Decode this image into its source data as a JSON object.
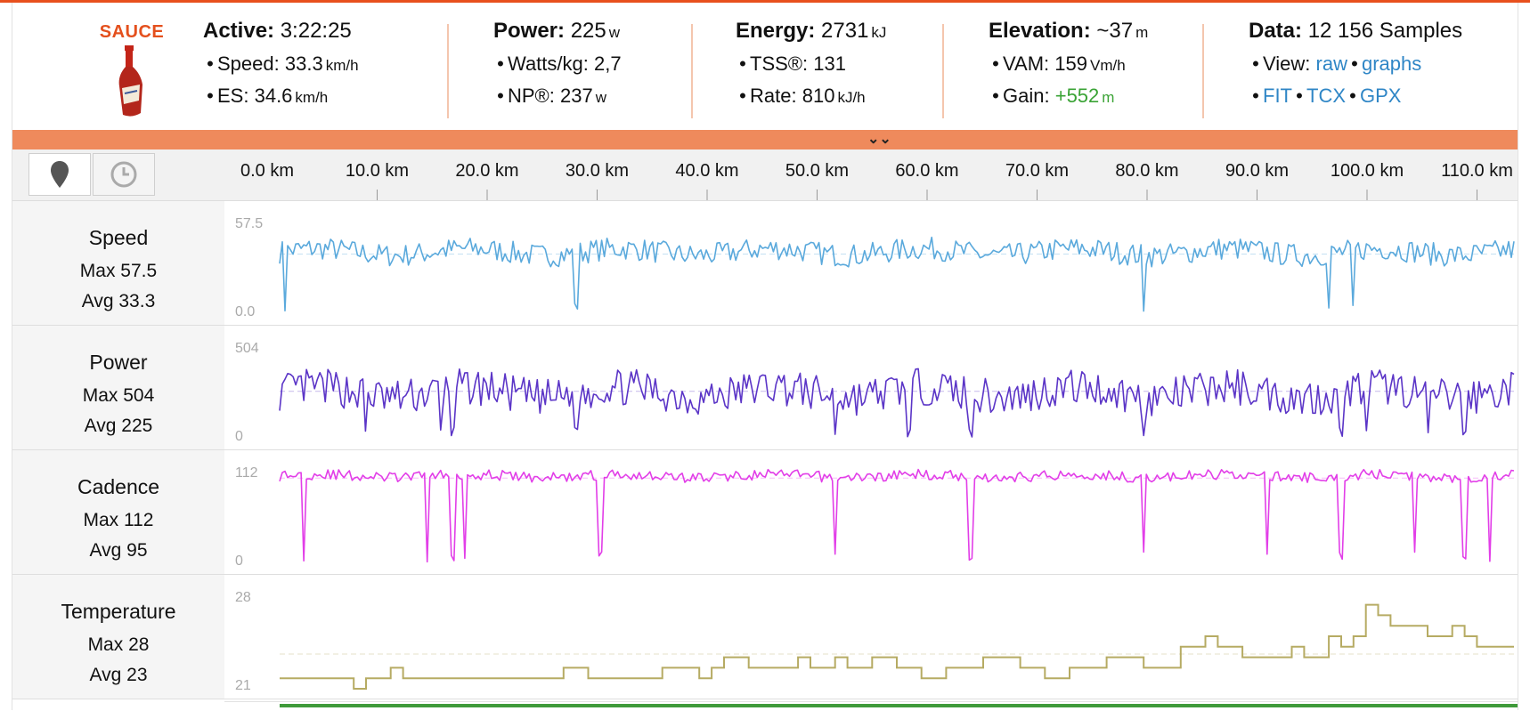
{
  "brand": "SAUCE",
  "header": {
    "active": {
      "label": "Active:",
      "value": "3:22:25",
      "speed": {
        "label": "Speed:",
        "value": "33.3",
        "unit": "km/h"
      },
      "es": {
        "label": "ES:",
        "value": "34.6",
        "unit": "km/h"
      }
    },
    "power": {
      "label": "Power:",
      "value": "225",
      "unit": "w",
      "wkg": {
        "label": "Watts/kg:",
        "value": "2,7"
      },
      "np": {
        "label": "NP®:",
        "value": "237",
        "unit": "w"
      }
    },
    "energy": {
      "label": "Energy:",
      "value": "2731",
      "unit": "kJ",
      "tss": {
        "label": "TSS®:",
        "value": "131"
      },
      "rate": {
        "label": "Rate:",
        "value": "810",
        "unit": "kJ/h"
      }
    },
    "elevation": {
      "label": "Elevation:",
      "value": "~37",
      "unit": "m",
      "vam": {
        "label": "VAM:",
        "value": "159",
        "unit": "Vm/h"
      },
      "gain": {
        "label": "Gain:",
        "value": "+552",
        "unit": "m"
      }
    },
    "data": {
      "label": "Data:",
      "value": "12 156 Samples",
      "view_label": "View:",
      "raw": "raw",
      "graphs": "graphs",
      "fit": "FIT",
      "tcx": "TCX",
      "gpx": "GPX"
    }
  },
  "toolbar": {
    "location_icon": "map-pin-icon",
    "time_icon": "clock-icon"
  },
  "axis": {
    "ticks": [
      "0.0 km",
      "10.0 km",
      "20.0 km",
      "30.0 km",
      "40.0 km",
      "50.0 km",
      "60.0 km",
      "70.0 km",
      "80.0 km",
      "90.0 km",
      "100.0 km",
      "110.0 km"
    ]
  },
  "lanes": {
    "speed": {
      "name": "Speed",
      "max": "Max 57.5",
      "avg": "Avg 33.3",
      "ymax": "57.5",
      "ymin": "0.0",
      "color": "#5aa9dc"
    },
    "power": {
      "name": "Power",
      "max": "Max 504",
      "avg": "Avg 225",
      "ymax": "504",
      "ymin": "0",
      "color": "#5b35c7"
    },
    "cadence": {
      "name": "Cadence",
      "max": "Max 112",
      "avg": "Avg 95",
      "ymax": "112",
      "ymin": "0",
      "color": "#e23ee8"
    },
    "temperature": {
      "name": "Temperature",
      "max": "Max 28",
      "avg": "Avg 23",
      "ymax": "28",
      "ymin": "21",
      "color": "#b6ab63"
    }
  },
  "colors": {
    "accent": "#e8501d",
    "collapse_bar": "#ef8a5c",
    "link": "#2f86c6",
    "gain": "#3aa335"
  }
}
